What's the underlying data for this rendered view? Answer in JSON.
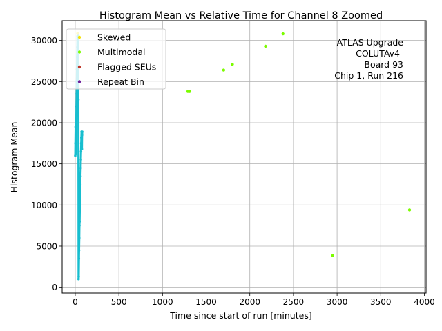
{
  "chart_data": {
    "type": "scatter",
    "title": "Histogram Mean vs Relative Time for Channel 8 Zoomed",
    "xlabel": "Time since start of run [minutes]",
    "ylabel": "Histogram Mean",
    "xlim": [
      -150,
      4020
    ],
    "ylim": [
      -700,
      32400
    ],
    "xticks": [
      0,
      500,
      1000,
      1500,
      2000,
      2500,
      3000,
      3500,
      4000
    ],
    "yticks": [
      0,
      5000,
      10000,
      15000,
      20000,
      25000,
      30000
    ],
    "grid": true,
    "legend_position": "top-left",
    "annotation": [
      "ATLAS Upgrade",
      "COLUTAv4",
      "Board 93",
      "Chip 1, Run 216"
    ],
    "main_series": {
      "color": "#17becf",
      "points": [
        [
          0,
          16000
        ],
        [
          2,
          17500
        ],
        [
          4,
          19500
        ],
        [
          6,
          16200
        ],
        [
          9,
          19800
        ],
        [
          12,
          20500
        ],
        [
          14,
          22000
        ],
        [
          16,
          23500
        ],
        [
          18,
          25000
        ],
        [
          20,
          26500
        ],
        [
          22,
          28000
        ],
        [
          24,
          29200
        ],
        [
          26,
          30500
        ],
        [
          28,
          30800
        ],
        [
          30,
          29000
        ],
        [
          32,
          27000
        ],
        [
          34,
          25500
        ],
        [
          35,
          24000
        ],
        [
          36,
          22800
        ],
        [
          38,
          1000
        ],
        [
          40,
          1300
        ],
        [
          42,
          3500
        ],
        [
          44,
          4500
        ],
        [
          46,
          6000
        ],
        [
          48,
          7500
        ],
        [
          50,
          8000
        ],
        [
          52,
          9200
        ],
        [
          54,
          10500
        ],
        [
          56,
          11500
        ],
        [
          58,
          12500
        ],
        [
          60,
          13500
        ],
        [
          62,
          14500
        ],
        [
          64,
          15500
        ],
        [
          66,
          16500
        ],
        [
          68,
          17500
        ],
        [
          70,
          18200
        ],
        [
          72,
          18900
        ],
        [
          74,
          17200
        ],
        [
          76,
          16800
        ],
        [
          78,
          18500
        ],
        [
          80,
          18900
        ]
      ]
    },
    "series": [
      {
        "name": "Skewed",
        "color": "#f5e100",
        "points": [
          [
            28,
            30850
          ]
        ]
      },
      {
        "name": "Multimodal",
        "color": "#7cfc00",
        "points": [
          [
            1290,
            23800
          ],
          [
            1310,
            23800
          ],
          [
            1700,
            26400
          ],
          [
            1800,
            27100
          ],
          [
            2180,
            29300
          ],
          [
            2380,
            30800
          ],
          [
            2950,
            3850
          ],
          [
            3830,
            9400
          ]
        ]
      },
      {
        "name": "Flagged SEUs",
        "color": "#c0392b",
        "points": []
      },
      {
        "name": "Repeat Bin",
        "color": "#6a1b9a",
        "points": []
      }
    ]
  }
}
